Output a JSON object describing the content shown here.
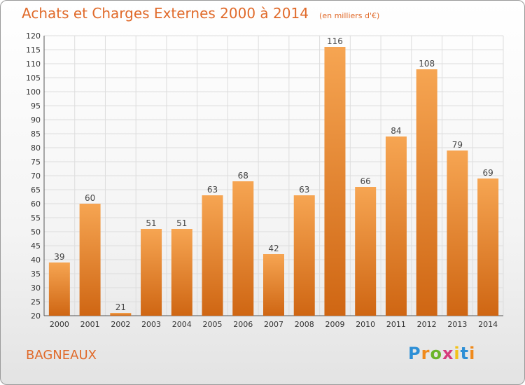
{
  "header": {
    "title": "Achats et Charges Externes 2000 à 2014",
    "subtitle": "(en milliers d'€)"
  },
  "footer": {
    "commune": "BAGNEAUX",
    "logo_text": "Proxiti"
  },
  "colors": {
    "accent": "#e06a2a",
    "bar_top": "#f6a552",
    "bar_bottom": "#cf6613",
    "grid": "#dddddd"
  },
  "chart_data": {
    "type": "bar",
    "categories": [
      "2000",
      "2001",
      "2002",
      "2003",
      "2004",
      "2005",
      "2006",
      "2007",
      "2008",
      "2009",
      "2010",
      "2011",
      "2012",
      "2013",
      "2014"
    ],
    "values": [
      39,
      60,
      21,
      51,
      51,
      63,
      68,
      42,
      63,
      116,
      66,
      84,
      108,
      79,
      69
    ],
    "data_labels": [
      "39",
      "60",
      "21",
      "51",
      "51",
      "63",
      "68",
      "42",
      "63",
      "116",
      "66",
      "84",
      "108",
      "79",
      "69"
    ],
    "y_ticks": [
      "20",
      "25",
      "30",
      "35",
      "40",
      "45",
      "50",
      "55",
      "60",
      "65",
      "70",
      "75",
      "80",
      "85",
      "90",
      "95",
      "100",
      "105",
      "110",
      "115",
      "120"
    ],
    "ylim": [
      20,
      120
    ],
    "grid": true,
    "title": "Achats et Charges Externes 2000 à 2014",
    "xlabel": "",
    "ylabel": ""
  }
}
